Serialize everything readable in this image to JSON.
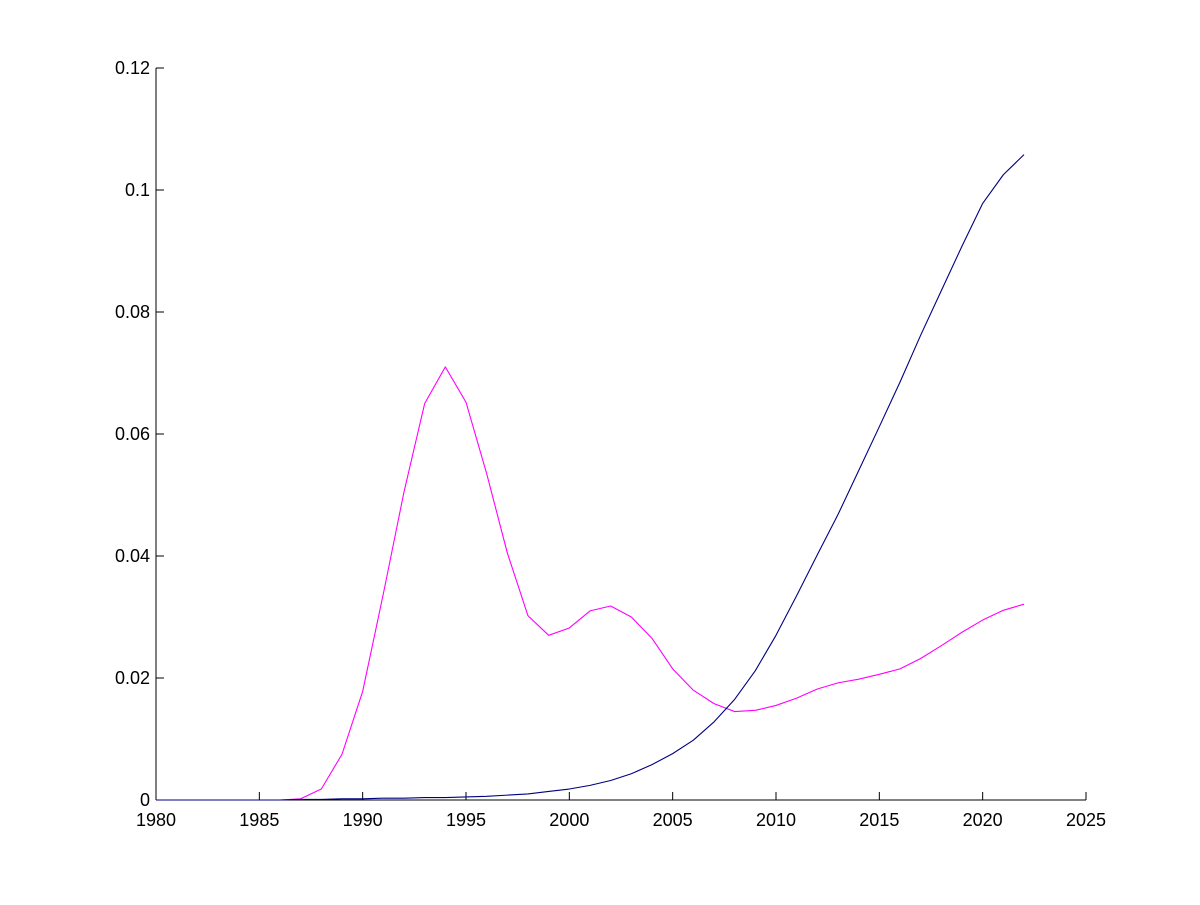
{
  "chart_data": {
    "type": "line",
    "title": "",
    "xlabel": "",
    "ylabel": "",
    "xlim": [
      1980,
      2025
    ],
    "ylim": [
      0,
      0.12
    ],
    "x_ticks": [
      1980,
      1985,
      1990,
      1995,
      2000,
      2005,
      2010,
      2015,
      2020,
      2025
    ],
    "x_tick_labels": [
      "1980",
      "1985",
      "1990",
      "1995",
      "2000",
      "2005",
      "2010",
      "2015",
      "2020",
      "2025"
    ],
    "y_ticks": [
      0,
      0.02,
      0.04,
      0.06,
      0.08,
      0.1,
      0.12
    ],
    "y_tick_labels": [
      "0",
      "0.02",
      "0.04",
      "0.06",
      "0.08",
      "0.1",
      "0.12"
    ],
    "grid": false,
    "legend": "none",
    "series": [
      {
        "color": "#ff00ff",
        "x": [
          1980,
          1981,
          1982,
          1983,
          1984,
          1985,
          1986,
          1987,
          1988,
          1989,
          1990,
          1991,
          1992,
          1993,
          1994,
          1995,
          1996,
          1997,
          1998,
          1999,
          2000,
          2001,
          2002,
          2003,
          2004,
          2005,
          2006,
          2007,
          2008,
          2009,
          2010,
          2011,
          2012,
          2013,
          2014,
          2015,
          2016,
          2017,
          2018,
          2019,
          2020,
          2021,
          2022
        ],
        "values": [
          0,
          0,
          0,
          0,
          0,
          0,
          0,
          0.0002,
          0.0018,
          0.0075,
          0.0178,
          0.0338,
          0.0505,
          0.065,
          0.071,
          0.0652,
          0.0535,
          0.0405,
          0.0302,
          0.027,
          0.0282,
          0.031,
          0.0318,
          0.03,
          0.0265,
          0.0215,
          0.018,
          0.0158,
          0.0145,
          0.0147,
          0.0155,
          0.0167,
          0.0182,
          0.0192,
          0.0198,
          0.0206,
          0.0215,
          0.0232,
          0.0253,
          0.0275,
          0.0295,
          0.0311,
          0.0321
        ]
      },
      {
        "color": "#000080",
        "x": [
          1980,
          1981,
          1982,
          1983,
          1984,
          1985,
          1986,
          1987,
          1988,
          1989,
          1990,
          1991,
          1992,
          1993,
          1994,
          1995,
          1996,
          1997,
          1998,
          1999,
          2000,
          2001,
          2002,
          2003,
          2004,
          2005,
          2006,
          2007,
          2008,
          2009,
          2010,
          2011,
          2012,
          2013,
          2014,
          2015,
          2016,
          2017,
          2018,
          2019,
          2020,
          2021,
          2022
        ],
        "values": [
          0,
          0,
          0,
          0,
          0,
          0,
          0,
          0.0001,
          0.0001,
          0.0002,
          0.0002,
          0.0003,
          0.0003,
          0.0004,
          0.0004,
          0.0005,
          0.0006,
          0.0008,
          0.001,
          0.0014,
          0.0018,
          0.0024,
          0.0032,
          0.0043,
          0.0058,
          0.0076,
          0.0098,
          0.0128,
          0.0165,
          0.0212,
          0.027,
          0.0335,
          0.0402,
          0.0468,
          0.054,
          0.0612,
          0.0685,
          0.0762,
          0.0835,
          0.0908,
          0.0978,
          0.1025,
          0.1058
        ]
      }
    ]
  }
}
